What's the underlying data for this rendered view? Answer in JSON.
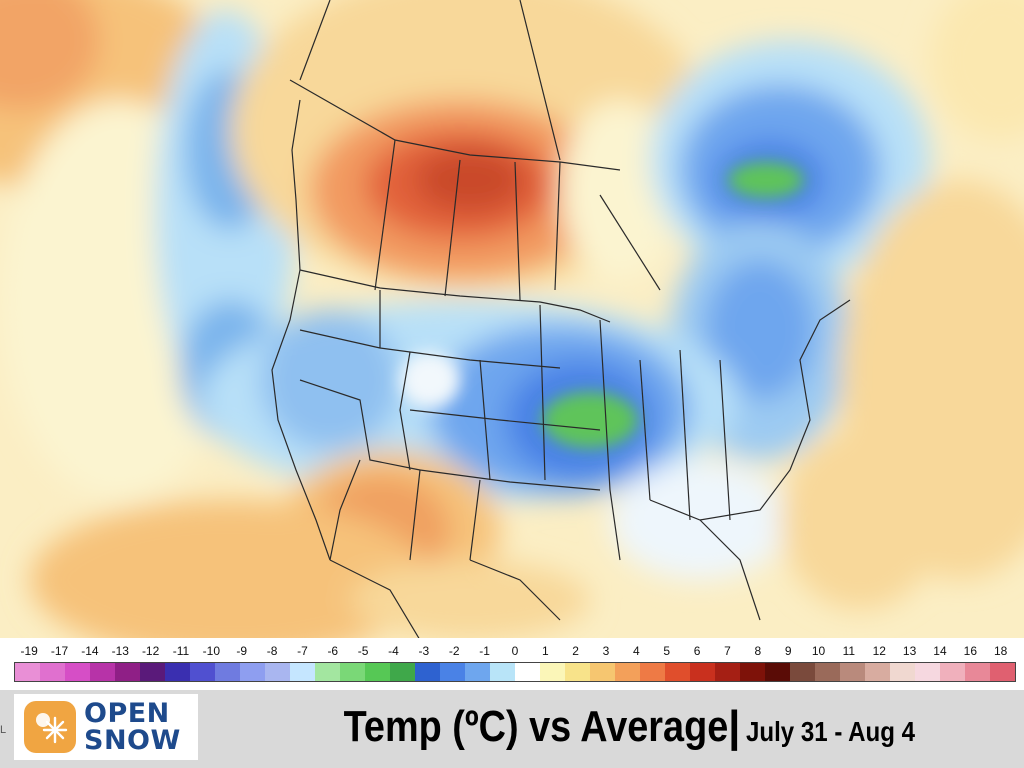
{
  "title": {
    "main": "Temp (ºC) vs Average",
    "separator": "|",
    "dates": "July 31 - Aug 4"
  },
  "logo": {
    "line1": "OPEN",
    "line2": "SNOW",
    "icon": "snowflake-sun-icon",
    "colors": {
      "badge": "#f0a542",
      "text": "#1e4a8c"
    }
  },
  "edge_text": "L",
  "legend": {
    "labels": [
      "-19",
      "-17",
      "-14",
      "-13",
      "-12",
      "-11",
      "-10",
      "-9",
      "-8",
      "-7",
      "-6",
      "-5",
      "-4",
      "-3",
      "-2",
      "-1",
      "0",
      "1",
      "2",
      "3",
      "4",
      "5",
      "6",
      "7",
      "8",
      "9",
      "10",
      "11",
      "12",
      "13",
      "14",
      "16",
      "18"
    ],
    "colors": [
      "#e98fd6",
      "#e070cf",
      "#d64ec6",
      "#b733a8",
      "#8f1f86",
      "#5a1a7a",
      "#3a2fb0",
      "#5050d0",
      "#6f7be0",
      "#8e9ef0",
      "#a9b6f0",
      "#c5e6ff",
      "#a3e6a0",
      "#7ad877",
      "#56c855",
      "#3fa84a",
      "#2e62d0",
      "#4a82e6",
      "#6ea6ee",
      "#b8e4f8",
      "#ffffff",
      "#fbf6b8",
      "#f8e38a",
      "#f6c670",
      "#f3a05a",
      "#ee7a45",
      "#e04e2c",
      "#c9301e",
      "#a51f14",
      "#7e1209",
      "#5a0c06",
      "#7a4a3c",
      "#9a6a5a",
      "#b98a7c",
      "#d8aca0",
      "#f0d8d0",
      "#f6d8e0",
      "#f0b0bc",
      "#e88898",
      "#e06070"
    ],
    "scale": "temperature anomaly (ºC)"
  },
  "map": {
    "region": "North America",
    "features": [
      "coastlines",
      "country borders",
      "US state borders",
      "Canadian province borders"
    ],
    "warm_anomaly_areas": [
      "western Canada (Alberta / Saskatchewan)",
      "US Southwest / Four Corners",
      "northwest Mexico",
      "Atlantic off the Southeast US"
    ],
    "cool_anomaly_areas": [
      "Quebec / Labrador",
      "central US Plains (Nebraska / Iowa)",
      "Pacific Northwest offshore",
      "northern US Rockies",
      "Northeast US"
    ]
  }
}
